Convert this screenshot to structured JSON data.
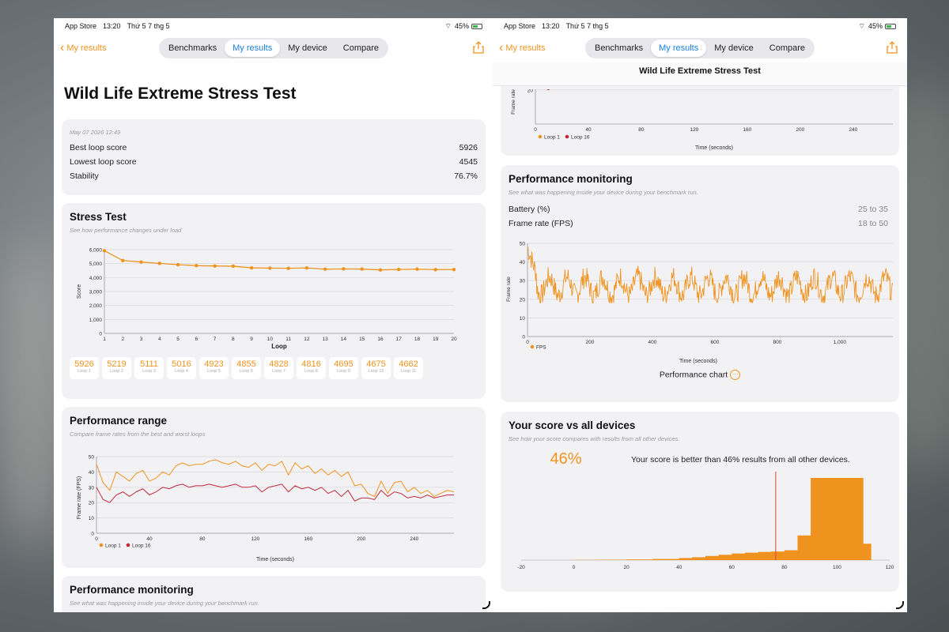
{
  "colors": {
    "accent": "#f0931e",
    "loop16": "#c0283a",
    "link": "#1a7fe0"
  },
  "status": {
    "app": "App Store",
    "time": "13:20",
    "date": "Thứ 5 7 thg 5",
    "battery": "45%"
  },
  "nav": {
    "back": "My results",
    "tabs": [
      "Benchmarks",
      "My results",
      "My device",
      "Compare"
    ],
    "active": "My results"
  },
  "left": {
    "title": "Wild Life Extreme Stress Test",
    "summary": {
      "date": "May 07 2026 12:49",
      "rows": [
        {
          "label": "Best loop score",
          "value": "5926"
        },
        {
          "label": "Lowest loop score",
          "value": "4545"
        },
        {
          "label": "Stability",
          "value": "76.7%"
        }
      ]
    },
    "stress": {
      "title": "Stress Test",
      "subtitle": "See how performance changes under load",
      "ylabel": "Score",
      "xlabel": "Loop",
      "loops": [
        {
          "score": "5926",
          "label": "Loop 1"
        },
        {
          "score": "5219",
          "label": "Loop 2"
        },
        {
          "score": "5111",
          "label": "Loop 3"
        },
        {
          "score": "5016",
          "label": "Loop 4"
        },
        {
          "score": "4923",
          "label": "Loop 5"
        },
        {
          "score": "4855",
          "label": "Loop 6"
        },
        {
          "score": "4828",
          "label": "Loop 7"
        },
        {
          "score": "4816",
          "label": "Loop 8"
        },
        {
          "score": "4695",
          "label": "Loop 9"
        },
        {
          "score": "4675",
          "label": "Loop 10"
        },
        {
          "score": "4662",
          "label": "Loop 11"
        }
      ]
    },
    "range": {
      "title": "Performance range",
      "subtitle": "Compare frame rates from the best and worst loops",
      "ylabel": "Frame rate (FPS)",
      "xlabel": "Time (seconds)",
      "legend": [
        "Loop 1",
        "Loop 16"
      ]
    },
    "monitor": {
      "title": "Performance monitoring",
      "subtitle": "See what was happening inside your device during your benchmark run."
    }
  },
  "right": {
    "header": "Wild Life Extreme Stress Test",
    "range_tail": {
      "ylabel": "Frame rate",
      "xlabel": "Time (seconds)",
      "legend": [
        "Loop 1",
        "Loop 16"
      ]
    },
    "monitor": {
      "title": "Performance monitoring",
      "subtitle": "See what was happening inside your device during your benchmark run.",
      "rows": [
        {
          "label": "Battery (%)",
          "value": "25 to 35"
        },
        {
          "label": "Frame rate (FPS)",
          "value": "18 to 50"
        }
      ],
      "ylabel": "Frame rate",
      "xlabel": "Time (seconds)",
      "legend": "FPS",
      "chart_link": "Performance chart"
    },
    "vs": {
      "title": "Your score vs all devices",
      "subtitle": "See how your score compares with results from all other devices.",
      "percent": "46%",
      "text": "Your score is better than 46% results from all other devices."
    }
  },
  "chart_data": [
    {
      "type": "line",
      "title": "Stress Test",
      "xlabel": "Loop",
      "ylabel": "Score",
      "x": [
        1,
        2,
        3,
        4,
        5,
        6,
        7,
        8,
        9,
        10,
        11,
        12,
        13,
        14,
        15,
        16,
        17,
        18,
        19,
        20
      ],
      "series": [
        {
          "values": [
            5926,
            5219,
            5111,
            5016,
            4923,
            4855,
            4828,
            4816,
            4695,
            4675,
            4662,
            4690,
            4600,
            4620,
            4610,
            4545,
            4580,
            4600,
            4570,
            4575
          ]
        }
      ],
      "ylim": [
        0,
        6000
      ],
      "yticks": [
        0,
        1000,
        2000,
        3000,
        4000,
        5000,
        6000
      ],
      "ytick_labels": [
        "0",
        "1,000",
        "2,000",
        "3,000",
        "4,000",
        "5,000",
        "6,000"
      ],
      "grid": true
    },
    {
      "type": "line",
      "title": "Performance range",
      "xlabel": "Time (seconds)",
      "ylabel": "Frame rate (FPS)",
      "xlim": [
        0,
        270
      ],
      "ylim": [
        0,
        50
      ],
      "xticks": [
        0,
        40,
        80,
        120,
        160,
        200,
        240
      ],
      "yticks": [
        0,
        10,
        20,
        30,
        40,
        50
      ],
      "series": [
        {
          "name": "Loop 1",
          "x": [
            0,
            5,
            10,
            15,
            20,
            25,
            30,
            35,
            40,
            45,
            50,
            55,
            60,
            65,
            70,
            75,
            80,
            85,
            90,
            95,
            100,
            105,
            110,
            115,
            120,
            125,
            130,
            135,
            140,
            145,
            150,
            155,
            160,
            165,
            170,
            175,
            180,
            185,
            190,
            195,
            200,
            205,
            210,
            215,
            220,
            225,
            230,
            235,
            240,
            245,
            250,
            255,
            260,
            265,
            270
          ],
          "values": [
            45,
            33,
            28,
            40,
            37,
            34,
            39,
            41,
            34,
            36,
            40,
            38,
            44,
            46,
            44,
            45,
            45,
            47,
            48,
            46,
            45,
            47,
            44,
            43,
            46,
            41,
            45,
            44,
            47,
            38,
            46,
            42,
            44,
            39,
            42,
            38,
            41,
            37,
            40,
            31,
            32,
            26,
            24,
            34,
            26,
            33,
            34,
            27,
            30,
            26,
            28,
            24,
            26,
            28,
            27
          ]
        },
        {
          "name": "Loop 16",
          "x": [
            0,
            5,
            10,
            15,
            20,
            25,
            30,
            35,
            40,
            45,
            50,
            55,
            60,
            65,
            70,
            75,
            80,
            85,
            90,
            95,
            100,
            105,
            110,
            115,
            120,
            125,
            130,
            135,
            140,
            145,
            150,
            155,
            160,
            165,
            170,
            175,
            180,
            185,
            190,
            195,
            200,
            205,
            210,
            215,
            220,
            225,
            230,
            235,
            240,
            245,
            250,
            255,
            260,
            265,
            270
          ],
          "values": [
            30,
            22,
            20,
            25,
            27,
            24,
            27,
            29,
            25,
            27,
            30,
            29,
            31,
            32,
            30,
            31,
            31,
            32,
            31,
            30,
            31,
            32,
            30,
            30,
            31,
            27,
            30,
            31,
            32,
            27,
            31,
            29,
            30,
            28,
            30,
            26,
            28,
            24,
            28,
            21,
            23,
            23,
            22,
            28,
            24,
            27,
            26,
            23,
            24,
            23,
            25,
            23,
            24,
            25,
            25
          ]
        }
      ],
      "legend": "bottom-left",
      "grid": true
    },
    {
      "type": "line",
      "title": "Performance monitoring",
      "xlabel": "Time (seconds)",
      "ylabel": "Frame rate",
      "xlim": [
        0,
        1170
      ],
      "ylim": [
        0,
        50
      ],
      "xticks": [
        0,
        200,
        400,
        600,
        800,
        1000
      ],
      "xtick_labels": [
        "0",
        "200",
        "400",
        "600",
        "800",
        "1,000"
      ],
      "yticks": [
        0,
        10,
        20,
        30,
        40,
        50
      ],
      "series": [
        {
          "name": "FPS",
          "min": 18,
          "max": 50,
          "typical_range": [
            20,
            35
          ]
        }
      ]
    },
    {
      "type": "bar",
      "title": "Your score vs all devices",
      "xlim": [
        -20,
        120
      ],
      "xticks": [
        -20,
        0,
        20,
        40,
        60,
        80,
        100,
        120
      ],
      "marker": 76.7,
      "x": [
        0,
        10,
        20,
        30,
        40,
        45,
        50,
        55,
        60,
        65,
        70,
        75,
        80,
        85,
        90,
        95,
        100,
        105,
        110
      ],
      "values": [
        0.3,
        0.5,
        0.8,
        1.5,
        2.5,
        3.5,
        5,
        6.5,
        8,
        9,
        10,
        10.5,
        12,
        30,
        100,
        100,
        100,
        100,
        20
      ]
    }
  ]
}
